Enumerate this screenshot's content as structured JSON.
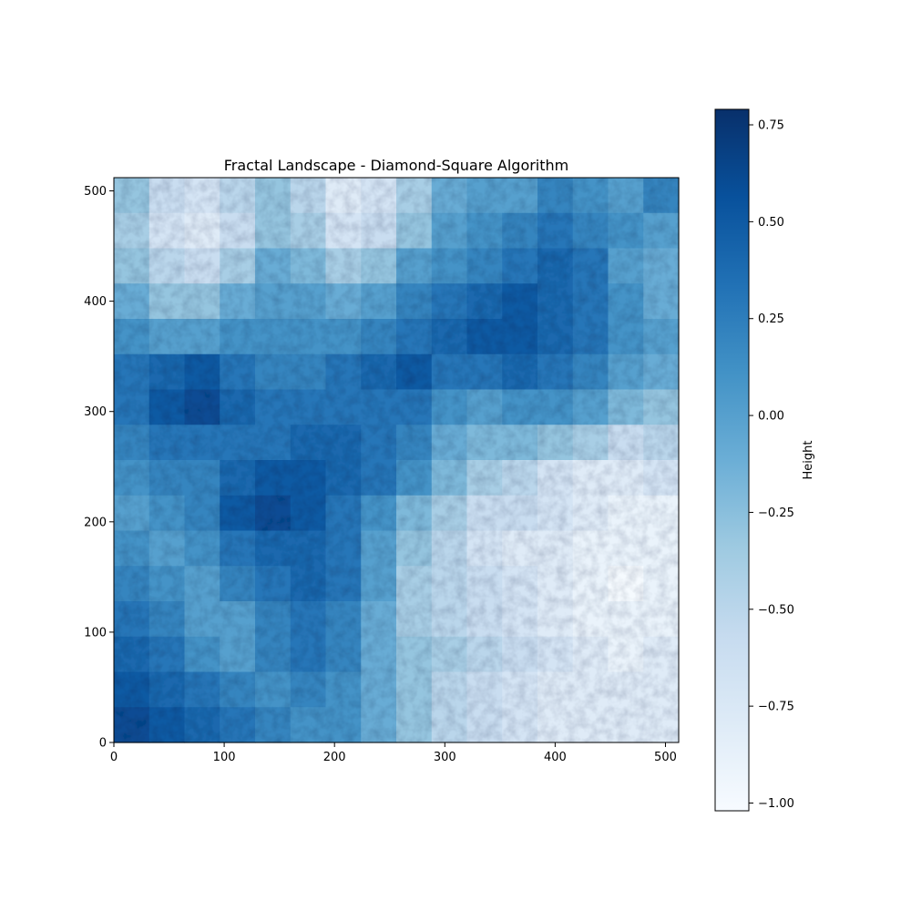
{
  "chart_data": {
    "type": "heatmap",
    "title": "Fractal Landscape - Diamond-Square Algorithm",
    "xlabel": "",
    "ylabel": "",
    "xlim": [
      0,
      512
    ],
    "ylim": [
      0,
      512
    ],
    "x_ticks": [
      0,
      100,
      200,
      300,
      400,
      500
    ],
    "y_ticks": [
      0,
      100,
      200,
      300,
      400,
      500
    ],
    "grid": false,
    "colormap": "Blues",
    "colormap_stops": [
      "#f7fbff",
      "#deebf7",
      "#c6dbef",
      "#9ecae1",
      "#6baed6",
      "#4292c6",
      "#2171b5",
      "#08519c",
      "#08306b"
    ],
    "colorbar": {
      "label": "Height",
      "range": [
        -1.02,
        0.79
      ],
      "ticks": [
        0.75,
        0.5,
        0.25,
        0.0,
        -0.25,
        -0.5,
        -0.75,
        -1.0
      ],
      "tick_labels": [
        "0.75",
        "0.50",
        "0.25",
        "0.00",
        "−0.25",
        "−0.50",
        "−0.75",
        "−1.00"
      ]
    },
    "heights": [
      [
        -0.3,
        -0.6,
        -0.7,
        -0.5,
        -0.3,
        -0.5,
        -0.8,
        -0.7,
        -0.4,
        -0.1,
        0.0,
        0.0,
        0.2,
        0.1,
        0.0,
        0.2
      ],
      [
        -0.4,
        -0.7,
        -0.8,
        -0.6,
        -0.3,
        -0.4,
        -0.7,
        -0.6,
        -0.3,
        0.0,
        0.1,
        0.2,
        0.3,
        0.2,
        0.1,
        0.0
      ],
      [
        -0.3,
        -0.5,
        -0.6,
        -0.4,
        -0.1,
        -0.2,
        -0.4,
        -0.3,
        0.0,
        0.1,
        0.2,
        0.3,
        0.4,
        0.3,
        0.0,
        -0.1
      ],
      [
        -0.1,
        -0.3,
        -0.3,
        -0.1,
        0.0,
        0.0,
        -0.1,
        0.0,
        0.2,
        0.3,
        0.4,
        0.5,
        0.4,
        0.3,
        0.1,
        -0.1
      ],
      [
        0.1,
        0.0,
        0.0,
        0.1,
        0.1,
        0.1,
        0.1,
        0.2,
        0.3,
        0.4,
        0.5,
        0.5,
        0.4,
        0.3,
        0.1,
        0.0
      ],
      [
        0.3,
        0.4,
        0.5,
        0.3,
        0.2,
        0.2,
        0.3,
        0.4,
        0.5,
        0.3,
        0.3,
        0.4,
        0.3,
        0.2,
        0.0,
        -0.1
      ],
      [
        0.3,
        0.5,
        0.6,
        0.4,
        0.3,
        0.3,
        0.3,
        0.3,
        0.3,
        0.1,
        0.0,
        0.1,
        0.1,
        0.0,
        -0.2,
        -0.3
      ],
      [
        0.2,
        0.3,
        0.3,
        0.3,
        0.3,
        0.4,
        0.4,
        0.3,
        0.2,
        -0.1,
        -0.2,
        -0.2,
        -0.3,
        -0.4,
        -0.6,
        -0.5
      ],
      [
        0.1,
        0.2,
        0.2,
        0.4,
        0.5,
        0.5,
        0.4,
        0.3,
        0.1,
        -0.2,
        -0.4,
        -0.5,
        -0.7,
        -0.8,
        -0.8,
        -0.7
      ],
      [
        0.0,
        0.1,
        0.2,
        0.5,
        0.6,
        0.5,
        0.3,
        0.1,
        -0.2,
        -0.4,
        -0.6,
        -0.6,
        -0.7,
        -0.8,
        -0.9,
        -0.9
      ],
      [
        0.1,
        0.0,
        0.1,
        0.3,
        0.4,
        0.4,
        0.3,
        0.0,
        -0.3,
        -0.5,
        -0.7,
        -0.8,
        -0.8,
        -0.9,
        -0.9,
        -0.9
      ],
      [
        0.2,
        0.1,
        0.0,
        0.2,
        0.3,
        0.4,
        0.3,
        0.0,
        -0.4,
        -0.5,
        -0.6,
        -0.7,
        -0.8,
        -0.9,
        -1.0,
        -0.9
      ],
      [
        0.3,
        0.2,
        0.0,
        0.0,
        0.2,
        0.3,
        0.2,
        -0.1,
        -0.4,
        -0.5,
        -0.6,
        -0.7,
        -0.8,
        -0.9,
        -0.9,
        -0.9
      ],
      [
        0.4,
        0.3,
        0.1,
        0.0,
        0.2,
        0.3,
        0.2,
        -0.1,
        -0.3,
        -0.4,
        -0.5,
        -0.6,
        -0.7,
        -0.8,
        -0.9,
        -0.8
      ],
      [
        0.5,
        0.4,
        0.3,
        0.2,
        0.1,
        0.2,
        0.1,
        -0.1,
        -0.3,
        -0.5,
        -0.6,
        -0.7,
        -0.8,
        -0.8,
        -0.8,
        -0.8
      ],
      [
        0.6,
        0.5,
        0.4,
        0.3,
        0.2,
        0.1,
        0.1,
        -0.1,
        -0.3,
        -0.5,
        -0.6,
        -0.7,
        -0.8,
        -0.8,
        -0.8,
        -0.8
      ]
    ]
  }
}
